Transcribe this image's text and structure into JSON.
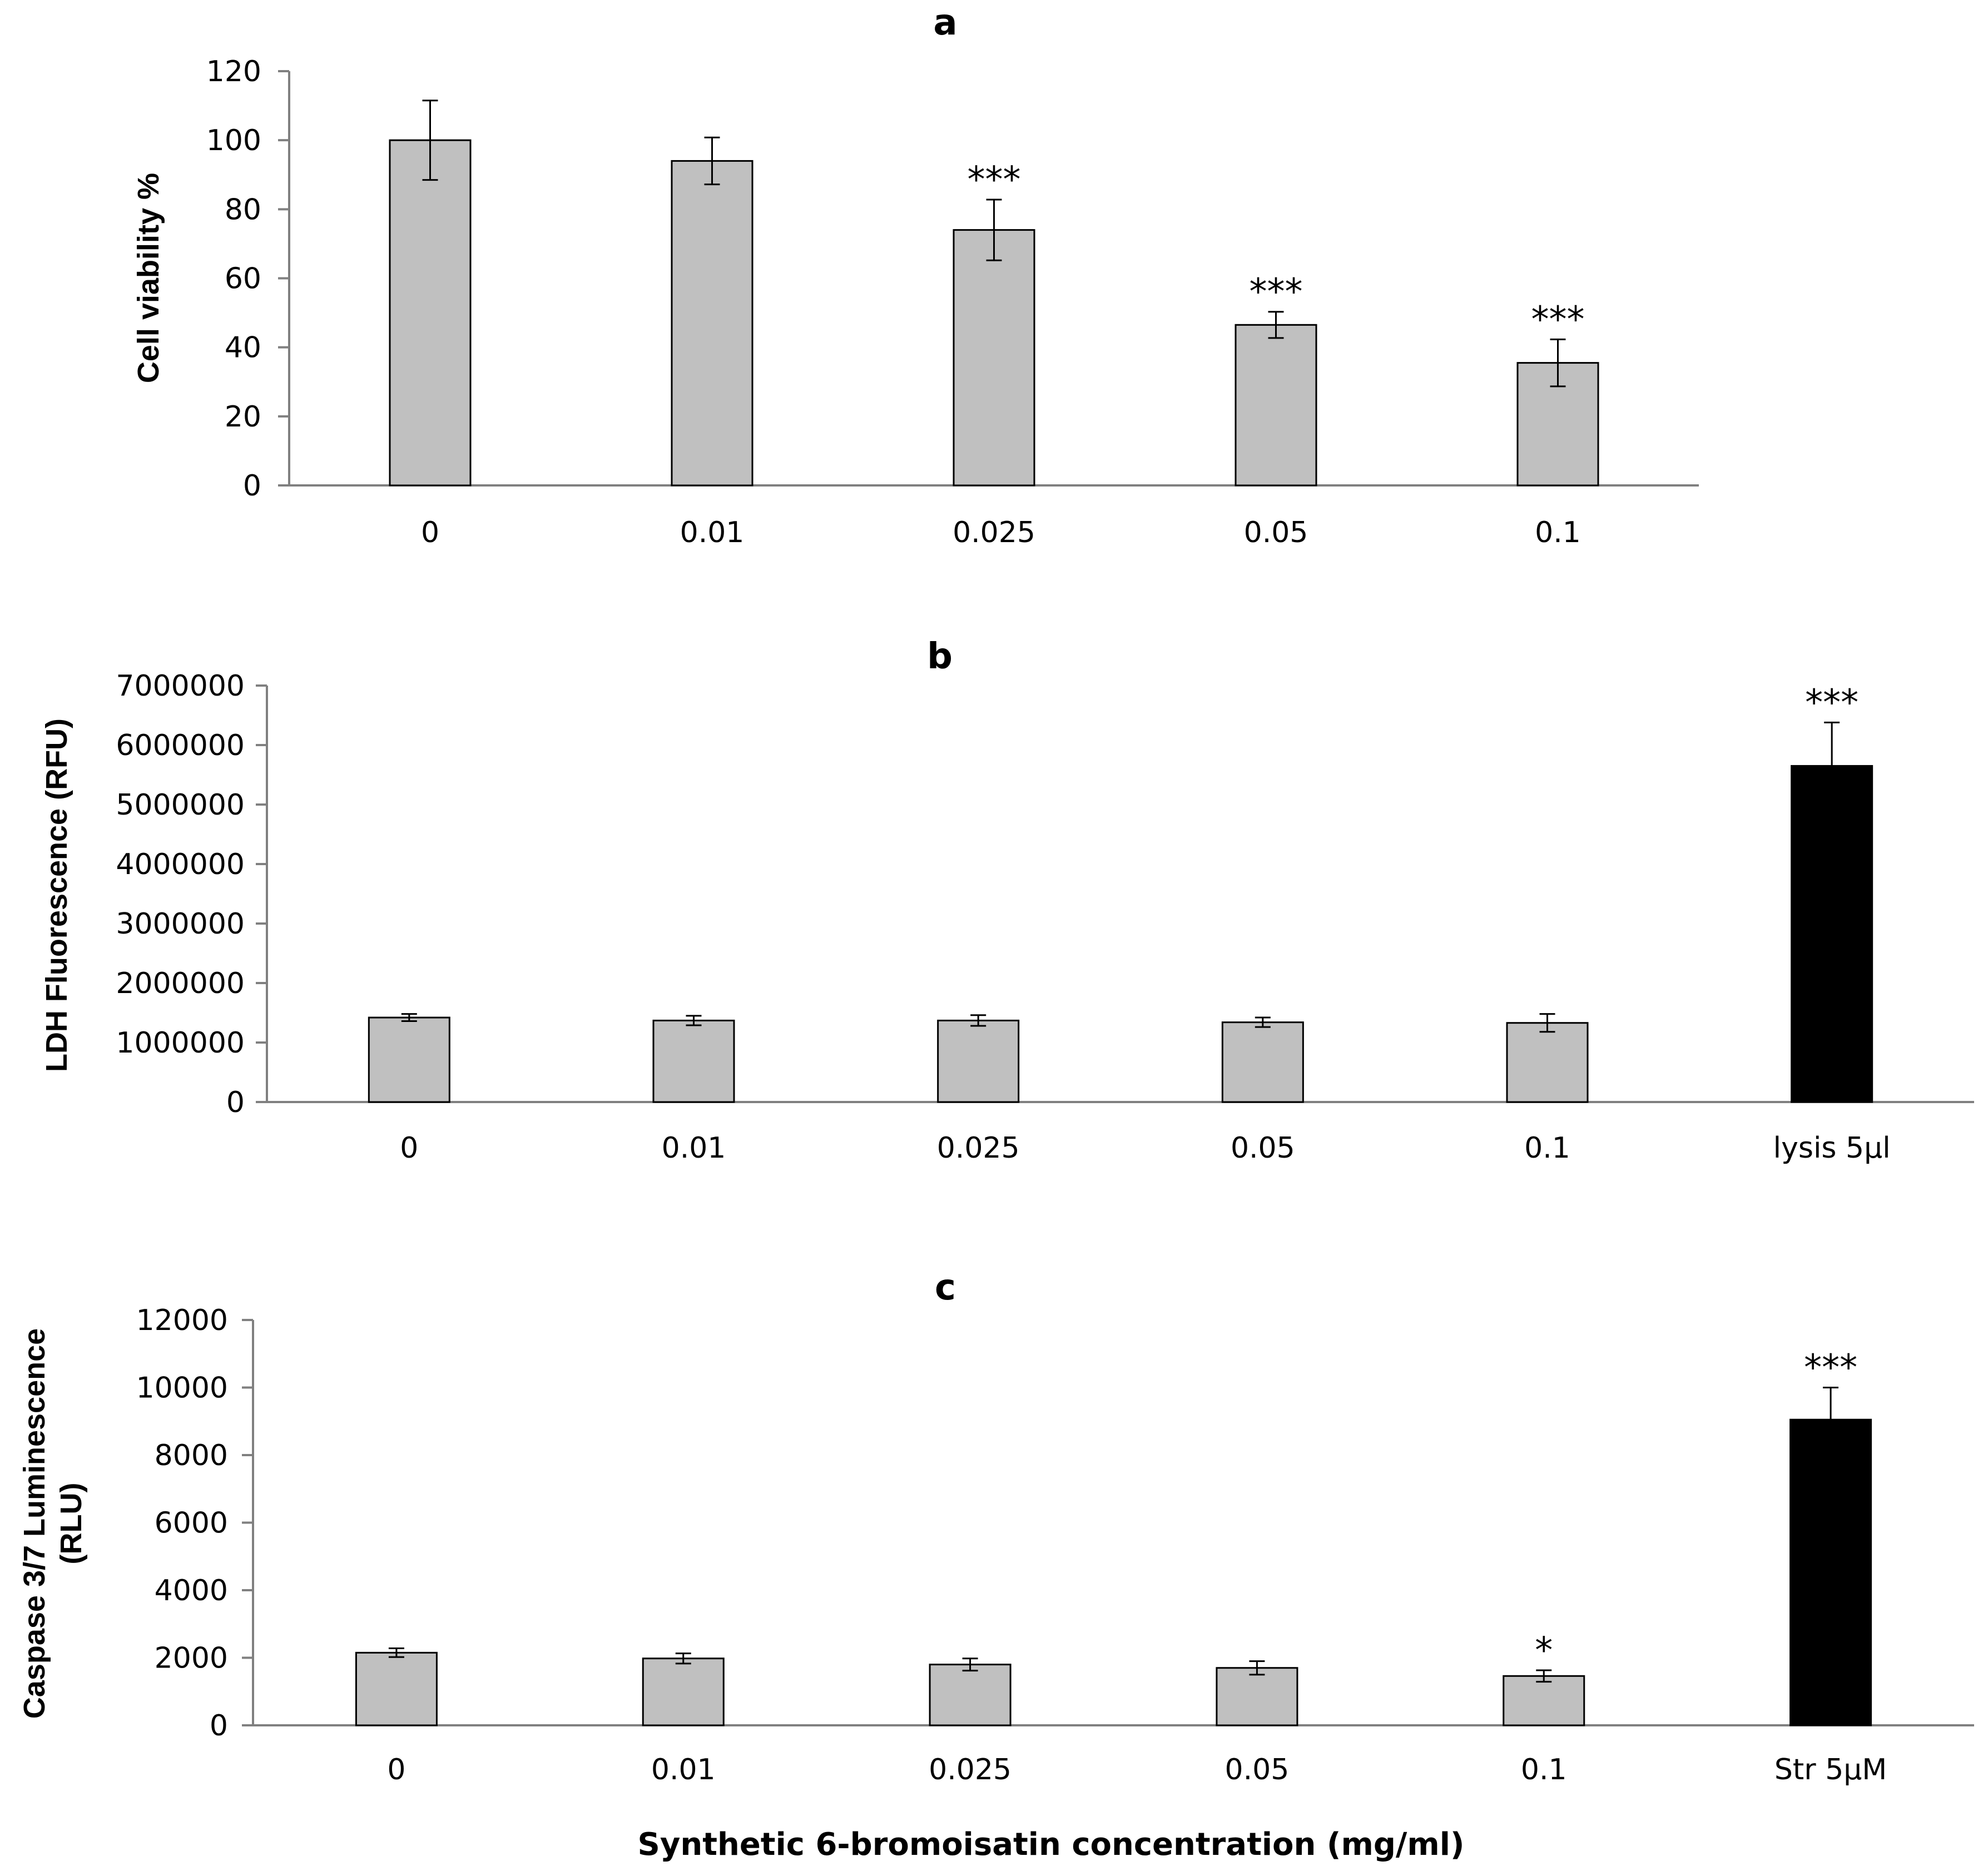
{
  "colors": {
    "treatment_bar": "#c0c0c0",
    "control_bar": "#000000",
    "axis": "#808080",
    "text": "#000000"
  },
  "x_label": "Synthetic 6-bromoisatin concentration (mg/ml)",
  "chart_data": [
    {
      "type": "bar",
      "panel": "a",
      "title": "a",
      "ylabel": "Cell viability %",
      "xlabel": "",
      "ylim": [
        0,
        120
      ],
      "yticks": [
        0,
        20,
        40,
        60,
        80,
        100,
        120
      ],
      "categories": [
        "0",
        "0.01",
        "0.025",
        "0.05",
        "0.1"
      ],
      "values": [
        100,
        94,
        74,
        46.5,
        35.5
      ],
      "errors": [
        11.5,
        6.8,
        8.8,
        3.8,
        6.8
      ],
      "significance": [
        "",
        "",
        "***",
        "***",
        "***"
      ],
      "bar_colors": [
        "#c0c0c0",
        "#c0c0c0",
        "#c0c0c0",
        "#c0c0c0",
        "#c0c0c0"
      ]
    },
    {
      "type": "bar",
      "panel": "b",
      "title": "b",
      "ylabel": "LDH Fluorescence (RFU)",
      "xlabel": "",
      "ylim": [
        0,
        7000000
      ],
      "yticks": [
        0,
        1000000,
        2000000,
        3000000,
        4000000,
        5000000,
        6000000,
        7000000
      ],
      "categories": [
        "0",
        "0.01",
        "0.025",
        "0.05",
        "0.1",
        "lysis 5µl"
      ],
      "values": [
        1420000,
        1370000,
        1370000,
        1340000,
        1330000,
        5650000
      ],
      "errors": [
        60000,
        80000,
        90000,
        80000,
        150000,
        730000
      ],
      "significance": [
        "",
        "",
        "",
        "",
        "",
        "***"
      ],
      "bar_colors": [
        "#c0c0c0",
        "#c0c0c0",
        "#c0c0c0",
        "#c0c0c0",
        "#c0c0c0",
        "#000000"
      ]
    },
    {
      "type": "bar",
      "panel": "c",
      "title": "c",
      "ylabel": [
        "Caspase 3/7 Luminescence",
        "(RLU)"
      ],
      "xlabel": "",
      "ylim": [
        0,
        12000
      ],
      "yticks": [
        0,
        2000,
        4000,
        6000,
        8000,
        10000,
        12000
      ],
      "categories": [
        "0",
        "0.01",
        "0.025",
        "0.05",
        "0.1",
        "Str 5µM"
      ],
      "values": [
        2150,
        1980,
        1800,
        1700,
        1460,
        9050
      ],
      "errors": [
        130,
        150,
        180,
        200,
        170,
        950
      ],
      "significance": [
        "",
        "",
        "",
        "",
        "*",
        "***"
      ],
      "bar_colors": [
        "#c0c0c0",
        "#c0c0c0",
        "#c0c0c0",
        "#c0c0c0",
        "#c0c0c0",
        "#000000"
      ]
    }
  ]
}
